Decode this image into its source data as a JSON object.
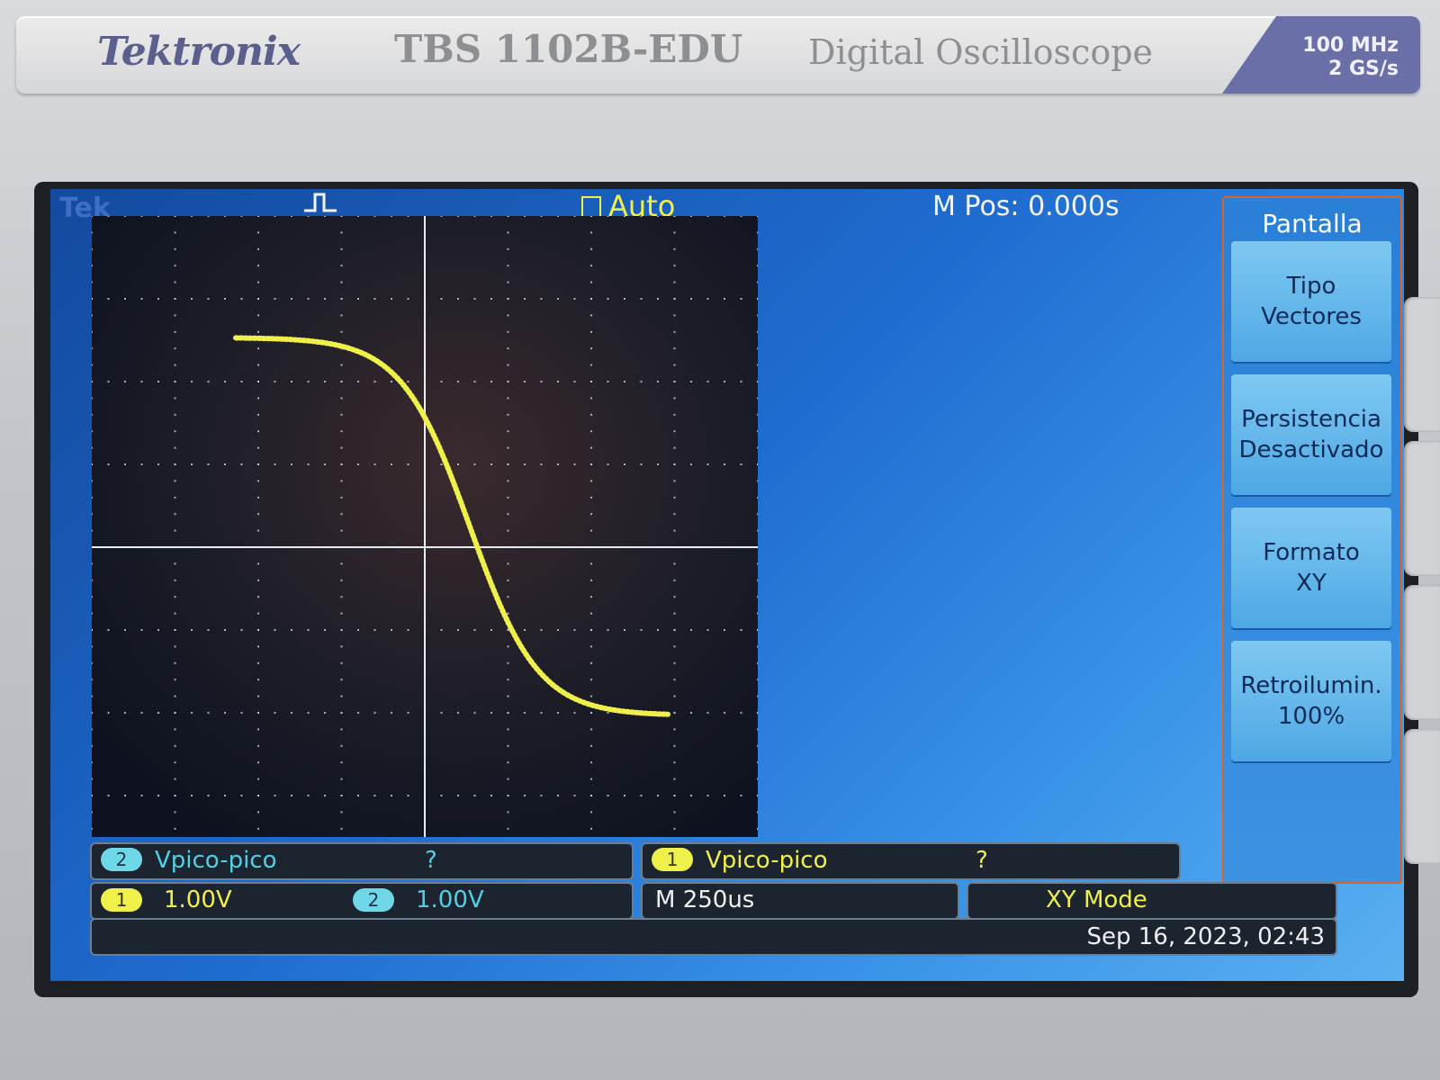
{
  "device": {
    "brand": "Tektronix",
    "model": "TBS 1102B-EDU",
    "description": "Digital Oscilloscope",
    "bandwidth": "100 MHz",
    "sample_rate": "2 GS/s"
  },
  "screen": {
    "tek_label": "Tek",
    "trigger_status": "Auto",
    "m_pos": "M Pos: 0.000s"
  },
  "menu": {
    "title": "Pantalla",
    "buttons": [
      {
        "line1": "Tipo",
        "line2": "Vectores"
      },
      {
        "line1": "Persistencia",
        "line2": "Desactivado"
      },
      {
        "line1": "Formato",
        "line2": "XY"
      },
      {
        "line1": "Retroilumin.",
        "line2": "100%"
      }
    ]
  },
  "measurements": [
    {
      "channel": "2",
      "label": "Vpico-pico",
      "value": "?"
    },
    {
      "channel": "1",
      "label": "Vpico-pico",
      "value": "?"
    }
  ],
  "status": {
    "ch1_channel": "1",
    "ch1_scale": "1.00V",
    "ch2_channel": "2",
    "ch2_scale": "1.00V",
    "timebase": "M 250us",
    "mode": "XY Mode",
    "datetime": "Sep 16, 2023, 02:43"
  },
  "colors": {
    "trace": "#f0f04a",
    "ch2": "#6fd8e8",
    "grid": "#cfd6e0"
  }
}
